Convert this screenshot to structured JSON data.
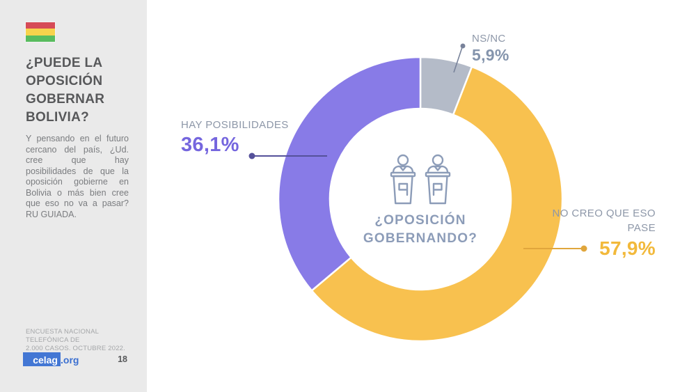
{
  "slide": {
    "flag": {
      "name": "bolivia-flag",
      "colors": {
        "red": "#D64B57",
        "yellow": "#F7D34C",
        "green": "#59BC5F"
      }
    },
    "sidebar": {
      "title": "¿PUEDE LA OPOSICIÓN GOBERNAR BOLIVIA?",
      "description": "Y pensando en el futuro cercano del país, ¿Ud. cree que hay posibilidades de que la oposición gobierne en Bolivia o más bien cree que eso no va a pasar? RU GUIADA.",
      "survey_note_line1": "ENCUESTA NACIONAL TELEFÓNICA DE",
      "survey_note_line2": "2.000 CASOS. OCTUBRE 2022.",
      "brand": {
        "box_text": "celag",
        "suffix": ".org",
        "box_color": "#4377D4",
        "suffix_color": "#3B6FD0"
      },
      "page_number": "18"
    },
    "center": {
      "icon": "debate-podiums",
      "question_line1": "¿OPOSICIÓN",
      "question_line2": "GOBERNANDO?"
    }
  },
  "chart_data": {
    "type": "pie",
    "subtype": "donut",
    "title": "¿OPOSICIÓN GOBERNANDO?",
    "units": "%",
    "start_angle_deg": 0,
    "direction": "clockwise",
    "legend_position": "none",
    "segments": [
      {
        "id": "ns-nc",
        "label": "NS/NC",
        "value": 5.9,
        "display": "5,9%",
        "color": "#B4BBC8",
        "text_color": "#8494AC",
        "leader_color": "#78829A"
      },
      {
        "id": "no-creo",
        "label": "NO CREO QUE ESO PASE",
        "value": 57.9,
        "display": "57,9%",
        "color": "#F8C14F",
        "text_color": "#F2B93B",
        "leader_color": "#E0A63C"
      },
      {
        "id": "hay-posibilidades",
        "label": "HAY POSIBILIDADES",
        "value": 36.1,
        "display": "36,1%",
        "color": "#887BE7",
        "text_color": "#7566DE",
        "leader_color": "#55519A"
      }
    ]
  }
}
